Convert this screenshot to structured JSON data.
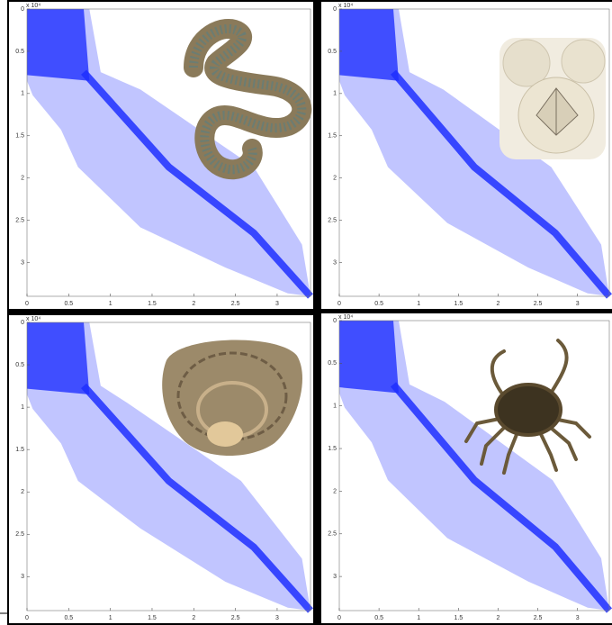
{
  "chart_data": [
    {
      "type": "spy",
      "exponent_label": "x 10⁴",
      "xlim": [
        0,
        3.4
      ],
      "ylim": [
        0,
        3.4
      ],
      "xticks": [
        0,
        0.5,
        1,
        1.5,
        2,
        2.5,
        3
      ],
      "yticks": [
        0,
        0.5,
        1,
        1.5,
        2,
        2.5,
        3
      ],
      "color": "#1f2fff"
    },
    {
      "type": "spy",
      "exponent_label": "x 10⁴",
      "xlim": [
        0,
        3.4
      ],
      "ylim": [
        0,
        3.4
      ],
      "xticks": [
        0,
        0.5,
        1,
        1.5,
        2,
        2.5,
        3
      ],
      "yticks": [
        0,
        0.5,
        1,
        1.5,
        2,
        2.5,
        3
      ],
      "color": "#1f2fff"
    },
    {
      "type": "spy",
      "exponent_label": "x 10⁴",
      "xlim": [
        0,
        3.4
      ],
      "ylim": [
        0,
        3.4
      ],
      "xticks": [
        0,
        0.5,
        1,
        1.5,
        2,
        2.5,
        3
      ],
      "yticks": [
        0,
        0.5,
        1,
        1.5,
        2,
        2.5,
        3
      ],
      "color": "#1f2fff"
    },
    {
      "type": "spy",
      "exponent_label": "x 10⁴",
      "xlim": [
        0,
        3.4
      ],
      "ylim": [
        0,
        3.4
      ],
      "xticks": [
        0,
        0.5,
        1,
        1.5,
        2,
        2.5,
        3
      ],
      "yticks": [
        0,
        0.5,
        1,
        1.5,
        2,
        2.5,
        3
      ],
      "color": "#1f2fff"
    }
  ]
}
